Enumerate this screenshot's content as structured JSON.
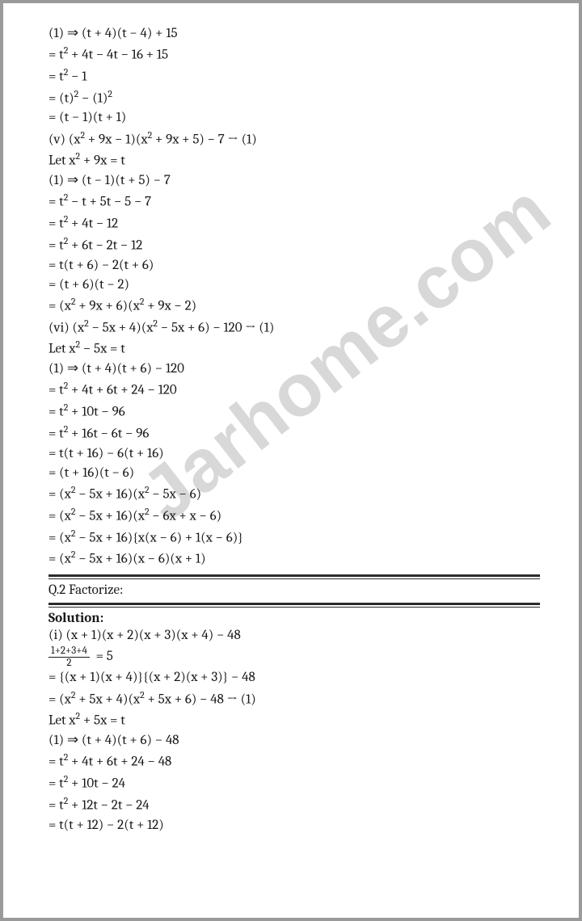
{
  "watermark": "Jarhome.com",
  "colors": {
    "text": "#1a1a1a",
    "watermark": "#d8d8d8",
    "border": "#9a9a9a",
    "rule": "#2b2b2b",
    "bg": "#ffffff"
  },
  "typography": {
    "body_fontsize": 17,
    "line_height": 1.42,
    "font_family": "Cambria / Times New Roman serif",
    "watermark_fontsize": 92
  },
  "block1": [
    "(1) ⇒ (t + 4)(t − 4) + 15",
    "= t² + 4t − 4t − 16 + 15",
    "= t² − 1",
    "= (t)² − (1)²",
    "= (t − 1)(t + 1)",
    "(v) (x² + 9x − 1)(x² + 9x + 5) − 7 → (1)",
    "Let x² + 9x = t",
    "(1) ⇒ (t − 1)(t + 5) − 7",
    "= t² − t + 5t − 5 − 7",
    "= t² + 4t − 12",
    "= t² + 6t − 2t − 12",
    "= t(t + 6) − 2(t + 6)",
    "= (t + 6)(t − 2)",
    "= (x² + 9x + 6)(x² + 9x − 2)",
    "(vi) (x² − 5x + 4)(x² − 5x + 6) − 120 → (1)",
    "Let x² − 5x = t",
    "(1) ⇒ (t + 4)(t + 6) − 120",
    "= t² + 4t + 6t + 24 − 120",
    "= t² + 10t − 96",
    "= t² + 16t − 6t − 96",
    "= t(t + 16) − 6(t + 16)",
    "= (t + 16)(t − 6)",
    "= (x² − 5x + 16)(x² − 5x − 6)",
    "= (x² − 5x + 16)(x² − 6x + x − 6)",
    "= (x² − 5x + 16){x(x − 6) + 1(x − 6)}",
    "= (x² − 5x + 16)(x − 6)(x + 1)"
  ],
  "question2_title": "Q.2 Factorize:",
  "solution_label": "Solution:",
  "frac": {
    "num": "1+2+3+4",
    "den": "2",
    "equals": "= 5"
  },
  "block2a": [
    "(i) (x + 1)(x + 2)(x + 3)(x + 4) − 48"
  ],
  "block2b": [
    "= {(x + 1)(x + 4)}{(x + 2)(x + 3)} − 48",
    "= (x² + 5x + 4)(x² + 5x + 6) − 48 → (1)",
    "Let x² + 5x = t",
    "(1) ⇒ (t + 4)(t + 6) − 48",
    "= t² + 4t + 6t + 24 − 48",
    "= t² + 10t − 24",
    "= t² + 12t − 2t − 24",
    "= t(t + 12) − 2(t + 12)"
  ]
}
